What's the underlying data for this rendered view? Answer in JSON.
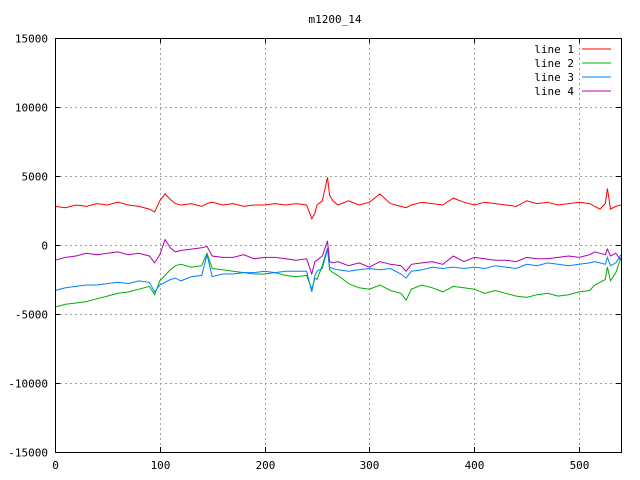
{
  "chart_data": {
    "type": "line",
    "title": "m1200_14",
    "xlabel": "",
    "ylabel": "",
    "xlim": [
      0,
      540
    ],
    "ylim": [
      -15000,
      15000
    ],
    "xticks": [
      0,
      100,
      200,
      300,
      400,
      500
    ],
    "yticks": [
      -15000,
      -10000,
      -5000,
      0,
      5000,
      10000,
      15000
    ],
    "grid": true,
    "legend_position": "top-right",
    "x": [
      0,
      10,
      20,
      30,
      40,
      50,
      60,
      70,
      80,
      90,
      95,
      100,
      105,
      110,
      115,
      120,
      130,
      140,
      145,
      150,
      160,
      170,
      180,
      190,
      200,
      210,
      220,
      230,
      240,
      245,
      248,
      250,
      255,
      260,
      262,
      265,
      270,
      280,
      290,
      300,
      310,
      320,
      330,
      335,
      340,
      350,
      360,
      370,
      380,
      390,
      400,
      410,
      420,
      430,
      440,
      450,
      460,
      470,
      480,
      490,
      500,
      510,
      515,
      520,
      525,
      527,
      530,
      535,
      540
    ],
    "series": [
      {
        "name": "line 1",
        "color": "#ff0000",
        "values": [
          2800,
          2700,
          2900,
          2800,
          3000,
          2900,
          3100,
          2900,
          2800,
          2600,
          2400,
          3200,
          3700,
          3300,
          3000,
          2900,
          3000,
          2800,
          3000,
          3100,
          2900,
          3000,
          2800,
          2900,
          2900,
          3000,
          2900,
          3000,
          2900,
          1900,
          2300,
          2900,
          3200,
          4900,
          3600,
          3200,
          2900,
          3200,
          2900,
          3100,
          3700,
          3000,
          2800,
          2700,
          2900,
          3100,
          3000,
          2900,
          3400,
          3100,
          2900,
          3100,
          3000,
          2900,
          2800,
          3200,
          3000,
          3100,
          2900,
          3000,
          3100,
          3000,
          2800,
          2600,
          3000,
          4100,
          2600,
          2800,
          2900
        ]
      },
      {
        "name": "line 2",
        "color": "#00b000",
        "values": [
          -4500,
          -4300,
          -4200,
          -4100,
          -3900,
          -3700,
          -3500,
          -3400,
          -3200,
          -3000,
          -3600,
          -2600,
          -2200,
          -1800,
          -1500,
          -1400,
          -1600,
          -1500,
          -600,
          -1700,
          -1800,
          -1900,
          -2000,
          -2100,
          -2100,
          -2000,
          -2200,
          -2300,
          -2200,
          -3200,
          -2400,
          -2500,
          -1500,
          -200,
          -1800,
          -2000,
          -2200,
          -2800,
          -3100,
          -3200,
          -2900,
          -3300,
          -3500,
          -4000,
          -3200,
          -2900,
          -3100,
          -3400,
          -3000,
          -3100,
          -3200,
          -3500,
          -3300,
          -3500,
          -3700,
          -3800,
          -3600,
          -3500,
          -3700,
          -3600,
          -3400,
          -3300,
          -2900,
          -2700,
          -2500,
          -1600,
          -2600,
          -2000,
          -900
        ]
      },
      {
        "name": "line 3",
        "color": "#0080ff",
        "values": [
          -3300,
          -3100,
          -3000,
          -2900,
          -2900,
          -2800,
          -2700,
          -2800,
          -2600,
          -2700,
          -3400,
          -2900,
          -2700,
          -2500,
          -2400,
          -2600,
          -2300,
          -2200,
          -700,
          -2300,
          -2100,
          -2100,
          -2000,
          -2000,
          -1900,
          -2000,
          -1900,
          -1900,
          -1900,
          -3400,
          -2200,
          -1900,
          -1700,
          -300,
          -1600,
          -1700,
          -1800,
          -1900,
          -1800,
          -1700,
          -1800,
          -1700,
          -2100,
          -2400,
          -1900,
          -1800,
          -1600,
          -1700,
          -1600,
          -1700,
          -1600,
          -1700,
          -1500,
          -1600,
          -1700,
          -1400,
          -1500,
          -1300,
          -1400,
          -1500,
          -1400,
          -1300,
          -1200,
          -1300,
          -1400,
          -900,
          -1500,
          -1300,
          -700
        ]
      },
      {
        "name": "line 4",
        "color": "#b000b0",
        "values": [
          -1100,
          -900,
          -800,
          -600,
          -700,
          -600,
          -500,
          -700,
          -600,
          -800,
          -1300,
          -700,
          400,
          -200,
          -500,
          -400,
          -300,
          -200,
          -100,
          -800,
          -900,
          -900,
          -700,
          -1000,
          -900,
          -900,
          -1000,
          -1100,
          -1000,
          -2100,
          -1200,
          -1100,
          -800,
          300,
          -1200,
          -1300,
          -1200,
          -1500,
          -1300,
          -1600,
          -1200,
          -1400,
          -1500,
          -1900,
          -1400,
          -1300,
          -1200,
          -1400,
          -800,
          -1200,
          -900,
          -1000,
          -1100,
          -1100,
          -1200,
          -900,
          -1000,
          -1000,
          -900,
          -800,
          -900,
          -700,
          -500,
          -600,
          -700,
          -300,
          -800,
          -600,
          -1100
        ]
      }
    ]
  }
}
